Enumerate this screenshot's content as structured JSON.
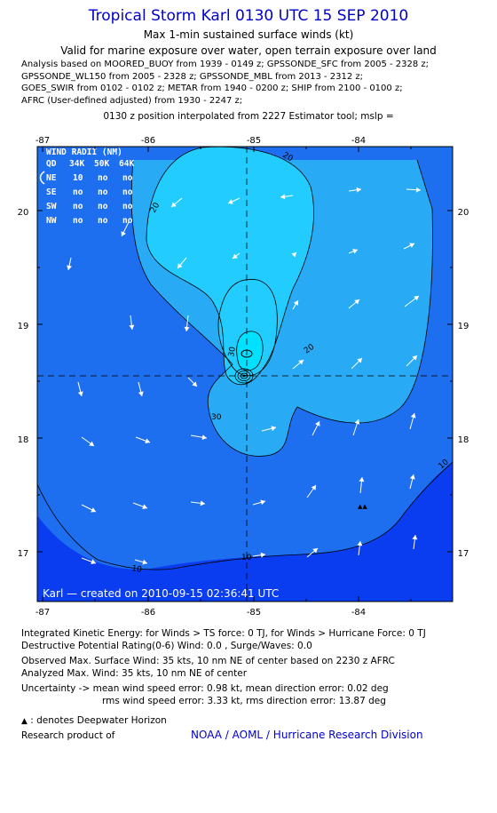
{
  "header": {
    "title": "Tropical Storm Karl 0130 UTC 15 SEP 2010",
    "subtitle": "Max 1-min sustained surface winds (kt)",
    "validity": "Valid for marine exposure over water, open terrain exposure over land",
    "analysis_lines": [
      "Analysis based on MOORED_BUOY from 1939 - 0149 z; GPSSONDE_SFC from 2005 - 2328 z;",
      "GPSSONDE_WL150 from 2005 - 2328 z; GPSSONDE_MBL from 2013 - 2312 z;",
      "GOES_SWIR from 0102 - 0102 z; METAR from 1940 - 0200 z; SHIP from 2100 - 0100 z;",
      "AFRC (User-defined adjusted) from 1930 - 2247 z;"
    ],
    "interpolation": "0130 z position interpolated from 2227 Estimator tool; mslp ="
  },
  "map": {
    "lon_labels": [
      "-87",
      "-86",
      "-85",
      "-84"
    ],
    "lat_labels": [
      "20",
      "19",
      "18",
      "17"
    ],
    "contour_labels": {
      "c10": "10",
      "c20": "20",
      "c30": "30"
    },
    "colors": {
      "lt10": "#0a3cf0",
      "c10": "#1e6ef0",
      "c20": "#28aaf5",
      "c30": "#22ccff",
      "c35": "#00e0ff",
      "contour": "#000000",
      "arrow": "#ffffff",
      "frame": "#000000"
    },
    "wind_radii": {
      "title": "WIND RADII (NM)",
      "header": [
        "QD",
        "34K",
        "50K",
        "64K"
      ],
      "rows": [
        [
          "NE",
          "10",
          "no",
          "no"
        ],
        [
          "SE",
          "no",
          "no",
          "no"
        ],
        [
          "SW",
          "no",
          "no",
          "no"
        ],
        [
          "NW",
          "no",
          "no",
          "no"
        ]
      ]
    },
    "credit": "Karl — created on 2010-09-15 02:36:41 UTC",
    "center": {
      "lon": -85.05,
      "lat": 18.55
    }
  },
  "footer": {
    "ike": "Integrated Kinetic Energy:  for Winds > TS force: 0 TJ,  for Winds > Hurricane Force: 0 TJ",
    "dpr": "Destructive Potential Rating(0-6)   Wind: 0.0 , Surge/Waves: 0.0",
    "obs_max": "Observed Max. Surface Wind: 35 kts, 10 nm NE of center based on 2230 z AFRC",
    "ana_max": "Analyzed Max. Wind: 35 kts, 10 nm NE of center",
    "uncert1": "Uncertainty -> mean wind speed error: 0.98 kt,   mean direction error: 0.02 deg",
    "uncert2": "rms wind speed error: 3.33 kt,    rms direction error: 13.87 deg",
    "deepwater": ": denotes Deepwater Horizon",
    "research": "Research product of",
    "org": "NOAA / AOML / Hurricane Research Division"
  }
}
